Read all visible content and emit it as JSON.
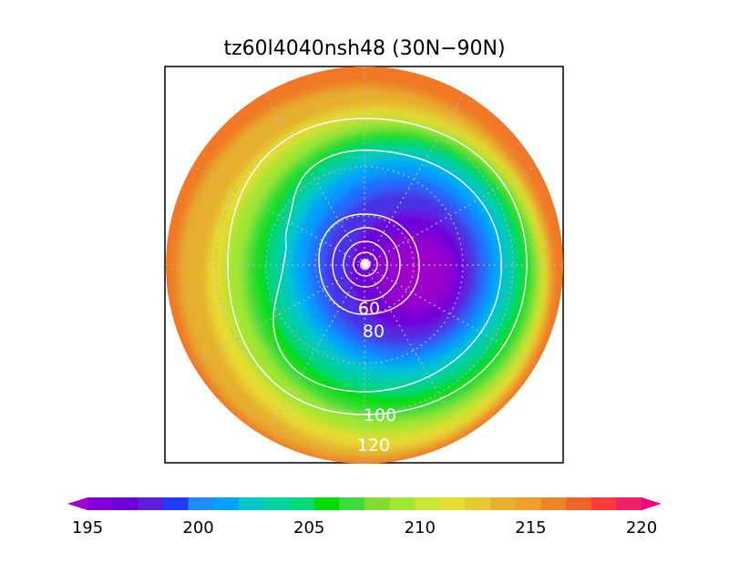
{
  "title": "tz60l4040nsh48 (30N−90N)",
  "contour_labels": [
    "60",
    "80",
    "100",
    "120"
  ],
  "colorbar": {
    "min": 195,
    "max": 220,
    "step": 1.25,
    "tick_labels": [
      "195",
      "200",
      "205",
      "210",
      "215",
      "220"
    ],
    "colors": [
      "#a000c8",
      "#8200dc",
      "#6e00dc",
      "#5a1edc",
      "#1e3cff",
      "#1e8cff",
      "#00a0ff",
      "#00c8c8",
      "#00d2a0",
      "#00dc78",
      "#00dc00",
      "#3cdc3c",
      "#82dc32",
      "#a0e632",
      "#c8e632",
      "#e6dc32",
      "#e6c832",
      "#e6af2d",
      "#f0a028",
      "#f08228",
      "#f06428",
      "#fa3c3c",
      "#f01e64",
      "#f00082"
    ]
  },
  "chart_data": {
    "type": "heatmap",
    "title": "tz60l4040nsh48 (30N−90N)",
    "projection": "north-polar-stereographic",
    "lat_range": [
      30,
      90
    ],
    "fill_range": [
      195,
      220
    ],
    "contour_levels": [
      20,
      40,
      60,
      80,
      100,
      120
    ],
    "labeled_contours": [
      60,
      80,
      100,
      120
    ],
    "grid": true
  }
}
